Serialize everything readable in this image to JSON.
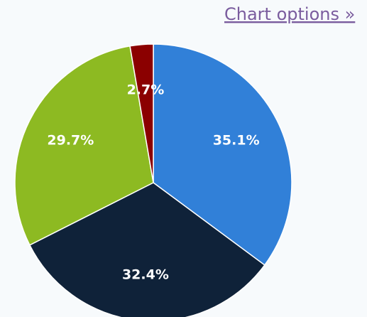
{
  "link": "Chart options »",
  "chart_data": {
    "type": "pie",
    "categories": [
      null,
      null,
      null,
      null
    ],
    "values": [
      35.1,
      32.4,
      29.7,
      2.7
    ],
    "value_labels": [
      "35.1%",
      "32.4%",
      "29.7%",
      "2.7%"
    ],
    "colors": [
      "#3180d8",
      "#0f2239",
      "#8dba22",
      "#8b0000"
    ]
  }
}
